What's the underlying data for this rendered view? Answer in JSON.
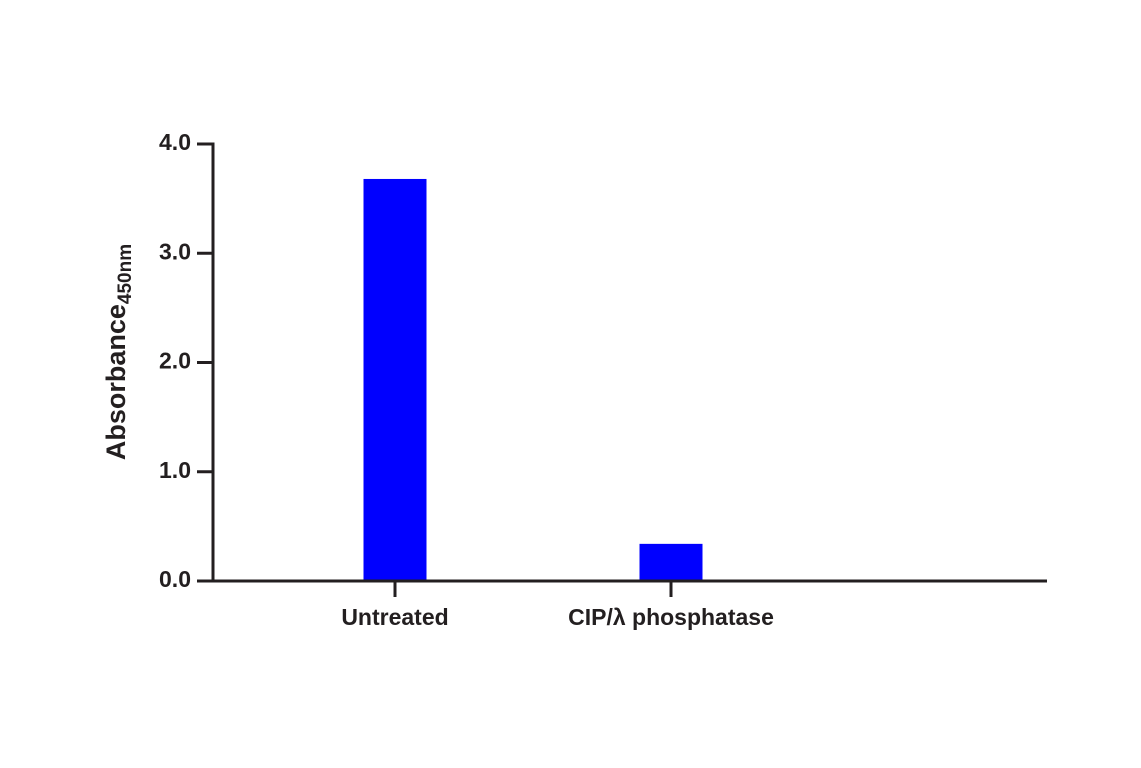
{
  "chart_data": {
    "type": "bar",
    "y_label": "Absorbance",
    "y_label_subscript": "450nm",
    "categories": [
      "Untreated",
      "CIP/λ phosphatase"
    ],
    "values": [
      3.68,
      0.34
    ],
    "color": "#0000ff",
    "ylim": [
      0,
      4
    ],
    "yticks": [
      {
        "value": 0,
        "label": "0.0"
      },
      {
        "value": 1,
        "label": "1.0"
      },
      {
        "value": 2,
        "label": "2.0"
      },
      {
        "value": 3,
        "label": "3.0"
      },
      {
        "value": 4,
        "label": "4.0"
      }
    ]
  }
}
